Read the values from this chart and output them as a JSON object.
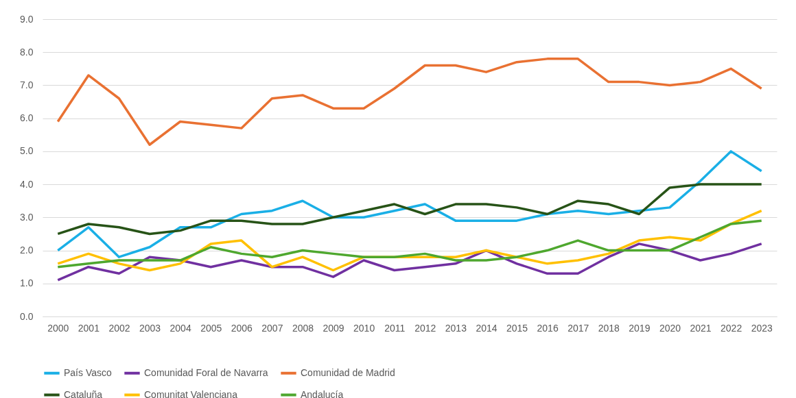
{
  "chart_data": {
    "type": "line",
    "categories": [
      "2000",
      "2001",
      "2002",
      "2003",
      "2004",
      "2005",
      "2006",
      "2007",
      "2008",
      "2009",
      "2010",
      "2011",
      "2012",
      "2013",
      "2014",
      "2015",
      "2016",
      "2017",
      "2018",
      "2019",
      "2020",
      "2021",
      "2022",
      "2023"
    ],
    "series": [
      {
        "name": "País Vasco",
        "color": "#1aafe6",
        "values": [
          2.0,
          2.7,
          1.8,
          2.1,
          2.7,
          2.7,
          3.1,
          3.2,
          3.5,
          3.0,
          3.0,
          3.2,
          3.4,
          2.9,
          2.9,
          2.9,
          3.1,
          3.2,
          3.1,
          3.2,
          3.3,
          4.1,
          5.0,
          4.4
        ]
      },
      {
        "name": "Comunidad Foral de Navarra",
        "color": "#7030a0",
        "values": [
          1.1,
          1.5,
          1.3,
          1.8,
          1.7,
          1.5,
          1.7,
          1.5,
          1.5,
          1.2,
          1.7,
          1.4,
          1.5,
          1.6,
          2.0,
          1.6,
          1.3,
          1.3,
          1.8,
          2.2,
          2.0,
          1.7,
          1.9,
          2.2
        ]
      },
      {
        "name": "Comunidad de Madrid",
        "color": "#e97132",
        "values": [
          5.9,
          7.3,
          6.6,
          5.2,
          5.9,
          5.8,
          5.7,
          6.6,
          6.7,
          6.3,
          6.3,
          6.9,
          7.6,
          7.6,
          7.4,
          7.7,
          7.8,
          7.8,
          7.1,
          7.1,
          7.0,
          7.1,
          7.5,
          6.9
        ]
      },
      {
        "name": "Cataluña",
        "color": "#275317",
        "values": [
          2.5,
          2.8,
          2.7,
          2.5,
          2.6,
          2.9,
          2.9,
          2.8,
          2.8,
          3.0,
          3.2,
          3.4,
          3.1,
          3.4,
          3.4,
          3.3,
          3.1,
          3.5,
          3.4,
          3.1,
          3.9,
          4.0,
          4.0,
          4.0
        ]
      },
      {
        "name": "Comunitat Valenciana",
        "color": "#ffc000",
        "values": [
          1.6,
          1.9,
          1.6,
          1.4,
          1.6,
          2.2,
          2.3,
          1.5,
          1.8,
          1.4,
          1.8,
          1.8,
          1.8,
          1.8,
          2.0,
          1.8,
          1.6,
          1.7,
          1.9,
          2.3,
          2.4,
          2.3,
          2.8,
          3.2
        ]
      },
      {
        "name": "Andalucía",
        "color": "#4ea72e",
        "values": [
          1.5,
          1.6,
          1.7,
          1.7,
          1.7,
          2.1,
          1.9,
          1.8,
          2.0,
          1.9,
          1.8,
          1.8,
          1.9,
          1.7,
          1.7,
          1.8,
          2.0,
          2.3,
          2.0,
          2.0,
          2.0,
          2.4,
          2.8,
          2.9
        ]
      }
    ],
    "ylim": [
      0,
      9
    ],
    "yticks": [
      {
        "value": 0,
        "label": "0.0"
      },
      {
        "value": 1,
        "label": "1.0"
      },
      {
        "value": 2,
        "label": "2.0"
      },
      {
        "value": 3,
        "label": "3.0"
      },
      {
        "value": 4,
        "label": "4.0"
      },
      {
        "value": 5,
        "label": "5.0"
      },
      {
        "value": 6,
        "label": "6.0"
      },
      {
        "value": 7,
        "label": "7.0"
      },
      {
        "value": 8,
        "label": "8.0"
      },
      {
        "value": 9,
        "label": "9.0"
      }
    ],
    "grid": "y",
    "legend": "bottom",
    "marker": "none",
    "line_style": "solid"
  }
}
